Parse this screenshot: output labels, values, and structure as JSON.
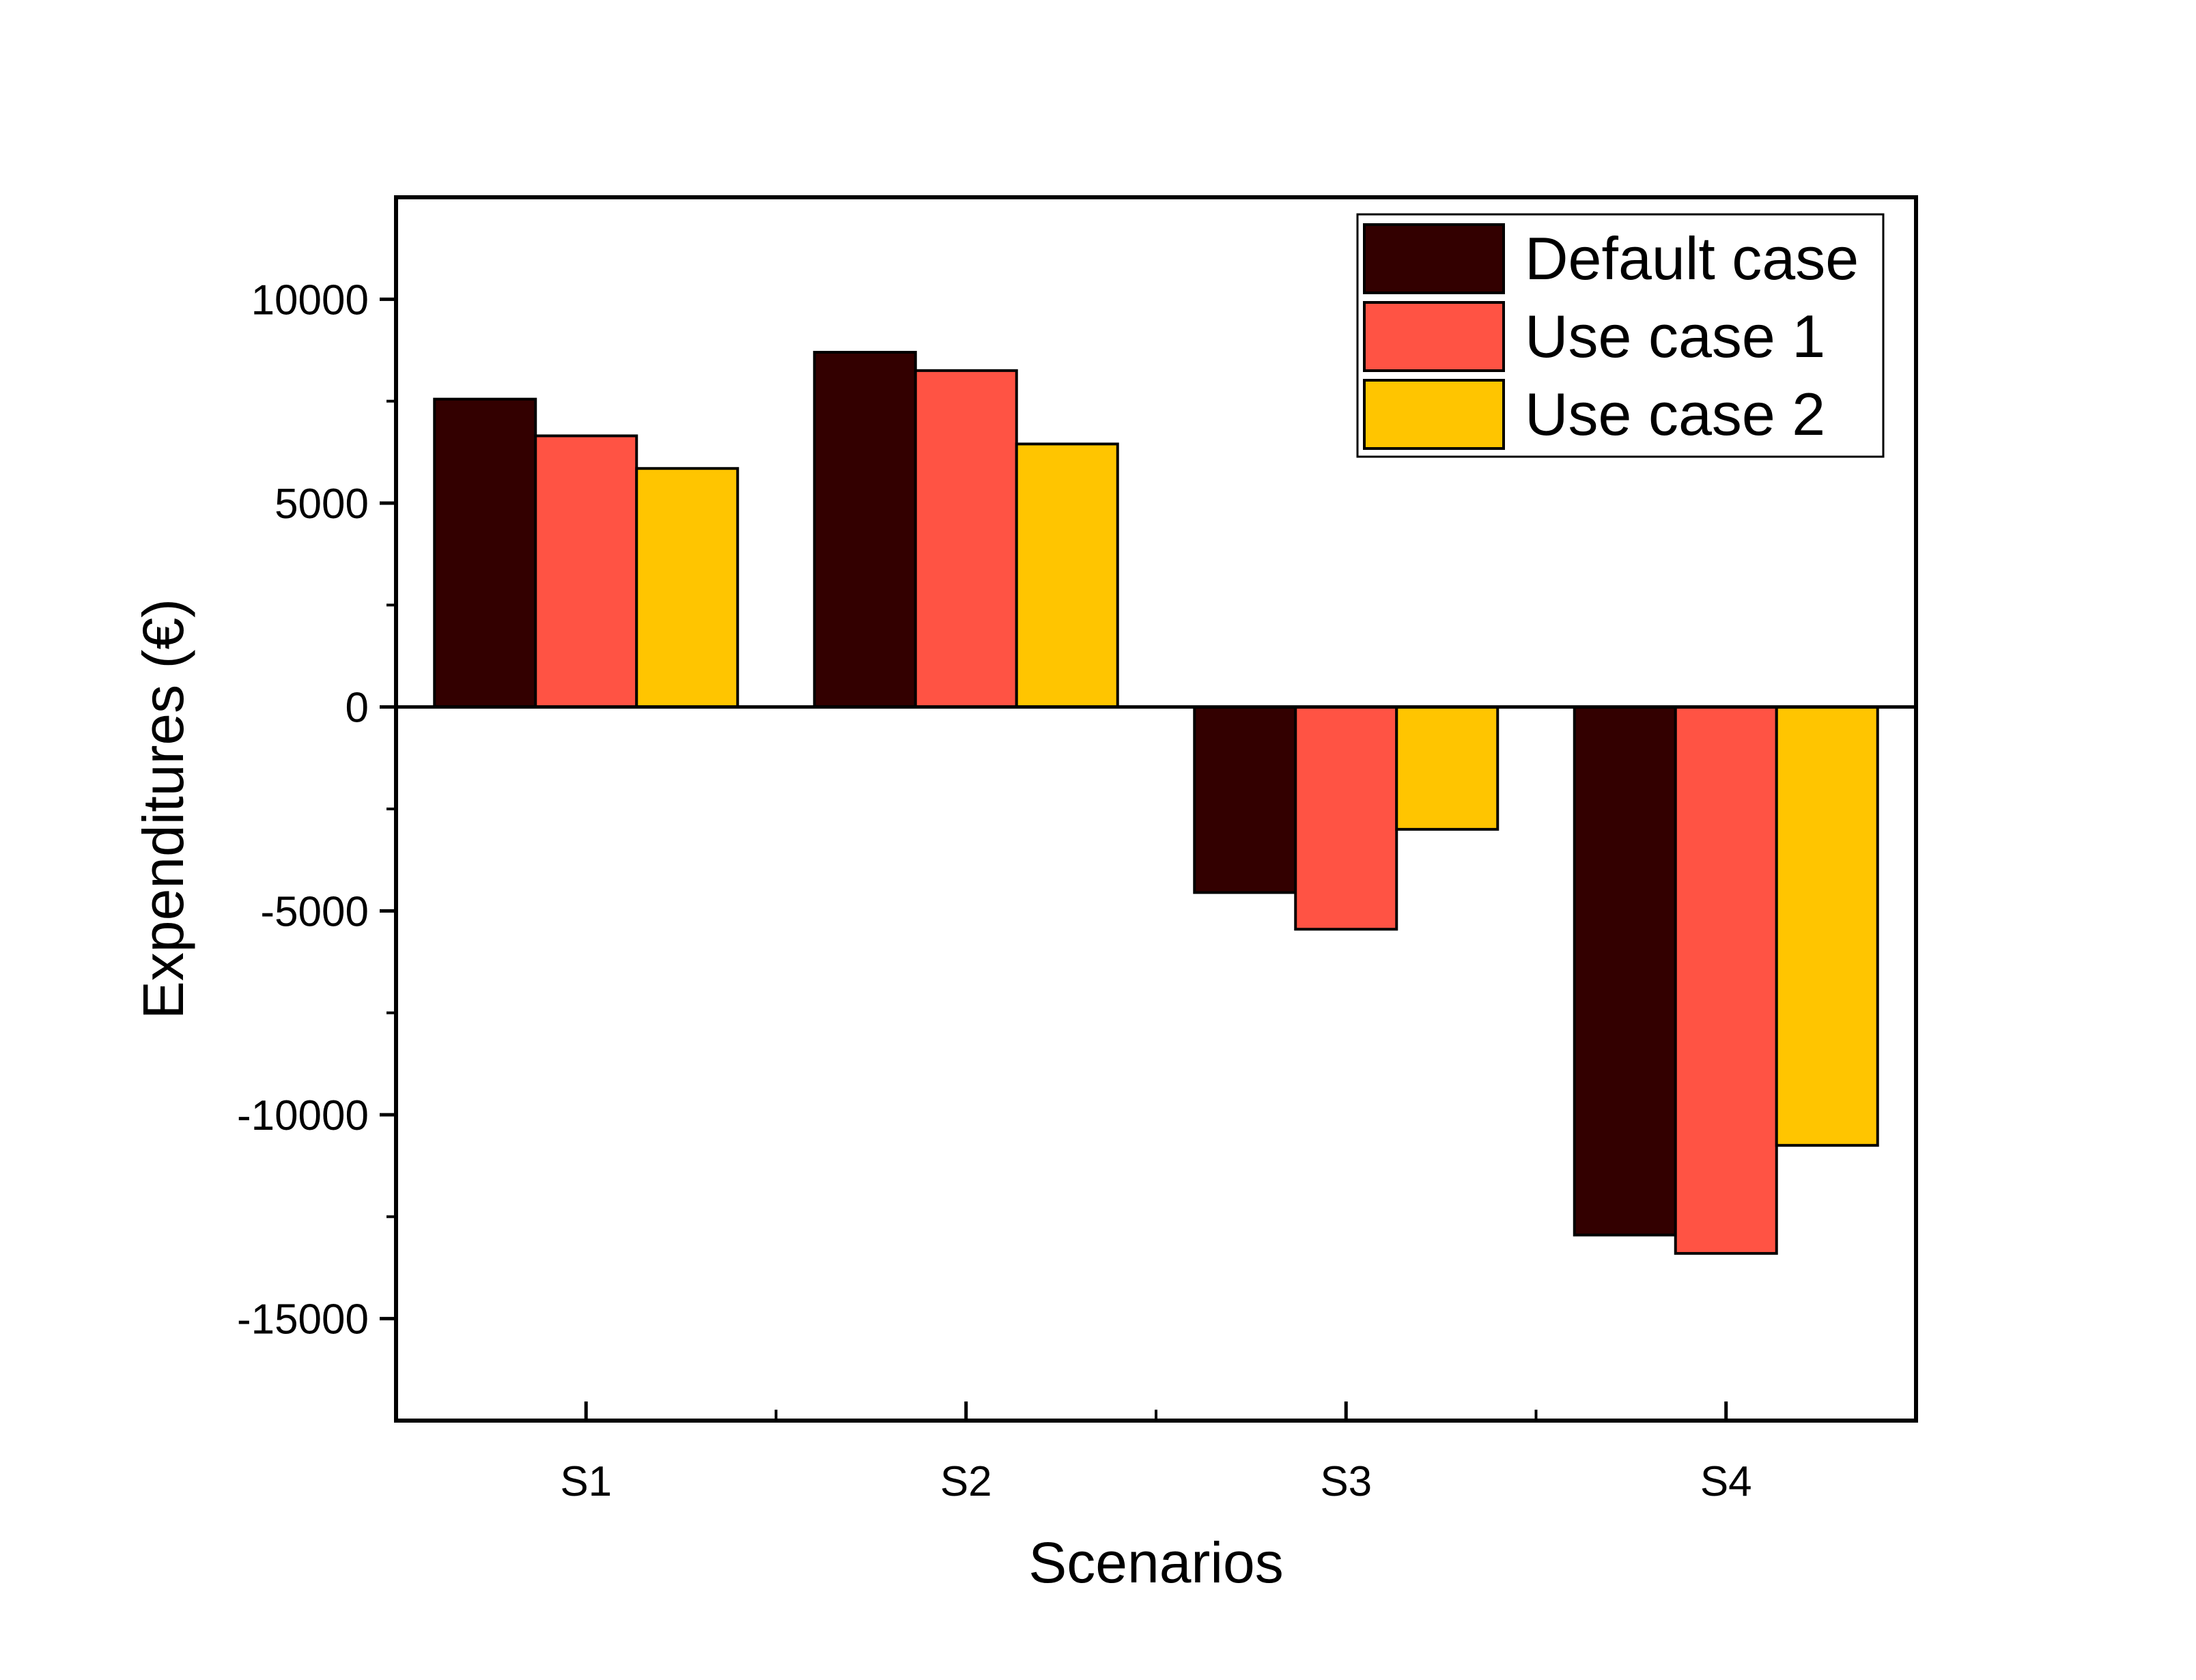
{
  "chart_data": {
    "type": "bar",
    "categories": [
      "S1",
      "S2",
      "S3",
      "S4"
    ],
    "series": [
      {
        "name": "Default case",
        "color": "#330000",
        "values": [
          7550,
          8700,
          -4550,
          -12950
        ]
      },
      {
        "name": "Use case 1",
        "color": "#ff5344",
        "values": [
          6650,
          8250,
          -5450,
          -13400
        ]
      },
      {
        "name": "Use case 2",
        "color": "#ffc500",
        "values": [
          5850,
          6450,
          -3000,
          -10750
        ]
      }
    ],
    "xlabel": "Scenarios",
    "ylabel": "Expenditures (€)",
    "ylim": [
      -17500,
      12500
    ],
    "yticks": [
      10000,
      5000,
      0,
      -5000,
      -10000,
      -15000
    ],
    "ytick_labels": [
      "10000",
      "5000",
      "0",
      "-5000",
      "-10000",
      "-15000"
    ],
    "legend_position": "top-right",
    "grid": false
  }
}
